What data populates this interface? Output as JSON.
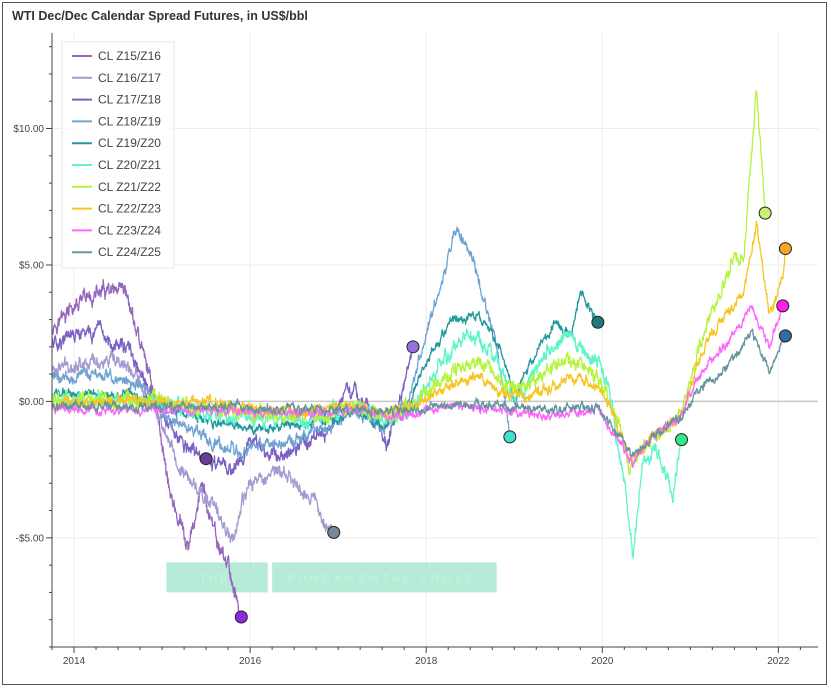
{
  "chart_data": {
    "type": "line",
    "title": "WTI Dec/Dec Calendar Spread Futures, in US$/bbl",
    "xlabel": "",
    "ylabel": "",
    "xlim": [
      2013.75,
      2022.45
    ],
    "ylim": [
      -9.0,
      13.5
    ],
    "x_ticks": [
      2014,
      2016,
      2018,
      2020,
      2022
    ],
    "x_tick_labels": [
      "2014",
      "2016",
      "2018",
      "2020",
      "2022"
    ],
    "y_ticks": [
      -5,
      0,
      5,
      10
    ],
    "y_tick_labels": [
      "-$5.00",
      "$0.00",
      "$5.00",
      "$10.00"
    ],
    "grid": true,
    "legend_position": "top-left",
    "zero_line": 0,
    "watermark": "THE FUNDAMENTAL ANGLE",
    "series": [
      {
        "name": "CL Z15/Z16",
        "color": "#9467bd",
        "volatility": 0.35,
        "points": [
          [
            2013.75,
            2.8
          ],
          [
            2014.0,
            3.4
          ],
          [
            2014.3,
            4.0
          ],
          [
            2014.6,
            3.8
          ],
          [
            2014.9,
            0.5
          ],
          [
            2015.1,
            -3.5
          ],
          [
            2015.3,
            -5.5
          ],
          [
            2015.45,
            -3.0
          ],
          [
            2015.6,
            -5.0
          ],
          [
            2015.75,
            -6.0
          ],
          [
            2015.9,
            -7.9
          ]
        ],
        "end_marker": {
          "x": 2015.9,
          "y": -7.9,
          "color": "#8a2be2"
        }
      },
      {
        "name": "CL Z16/Z17",
        "color": "#a79ad1",
        "volatility": 0.3,
        "points": [
          [
            2013.75,
            1.2
          ],
          [
            2014.2,
            1.5
          ],
          [
            2014.6,
            1.3
          ],
          [
            2014.9,
            0.0
          ],
          [
            2015.2,
            -2.5
          ],
          [
            2015.5,
            -3.5
          ],
          [
            2015.8,
            -5.0
          ],
          [
            2016.0,
            -3.0
          ],
          [
            2016.3,
            -2.5
          ],
          [
            2016.5,
            -3.0
          ],
          [
            2016.7,
            -3.5
          ],
          [
            2016.95,
            -4.8
          ]
        ],
        "end_marker": {
          "x": 2016.95,
          "y": -4.8,
          "color": "#778899"
        }
      },
      {
        "name": "CL Z17/Z18",
        "color": "#7b61c4",
        "volatility": 0.3,
        "points": [
          [
            2013.75,
            2.2
          ],
          [
            2014.2,
            2.5
          ],
          [
            2014.6,
            2.0
          ],
          [
            2014.9,
            0.0
          ],
          [
            2015.2,
            -1.5
          ],
          [
            2015.5,
            -2.2
          ],
          [
            2015.8,
            -2.5
          ],
          [
            2016.0,
            -1.5
          ],
          [
            2016.3,
            -2.0
          ],
          [
            2016.6,
            -1.5
          ],
          [
            2016.9,
            -1.0
          ],
          [
            2017.1,
            0.5
          ],
          [
            2017.3,
            0.0
          ],
          [
            2017.55,
            -1.5
          ],
          [
            2017.7,
            0.0
          ],
          [
            2017.85,
            2.0
          ]
        ],
        "end_marker": {
          "x": 2017.85,
          "y": 2.0,
          "color": "#9370db"
        }
      },
      {
        "name": "CL Z18/Z19",
        "color": "#6fa3d2",
        "volatility": 0.25,
        "points": [
          [
            2013.75,
            0.9
          ],
          [
            2014.3,
            1.0
          ],
          [
            2014.8,
            0.5
          ],
          [
            2015.0,
            -0.5
          ],
          [
            2015.3,
            -1.0
          ],
          [
            2015.6,
            -1.5
          ],
          [
            2015.9,
            -2.0
          ],
          [
            2016.2,
            -1.5
          ],
          [
            2016.5,
            -1.5
          ],
          [
            2016.9,
            -1.0
          ],
          [
            2017.2,
            -0.3
          ],
          [
            2017.5,
            -1.0
          ],
          [
            2017.8,
            0.0
          ],
          [
            2018.0,
            2.5
          ],
          [
            2018.2,
            4.5
          ],
          [
            2018.35,
            6.5
          ],
          [
            2018.6,
            4.5
          ],
          [
            2018.8,
            2.0
          ],
          [
            2018.95,
            -1.3
          ]
        ],
        "end_marker": {
          "x": 2018.95,
          "y": -1.3,
          "color": "#40e0d0"
        }
      },
      {
        "name": "CL Z19/Z20",
        "color": "#22999e",
        "volatility": 0.18,
        "points": [
          [
            2013.75,
            0.3
          ],
          [
            2014.5,
            0.3
          ],
          [
            2014.9,
            0.0
          ],
          [
            2015.2,
            -0.4
          ],
          [
            2015.6,
            -0.8
          ],
          [
            2016.0,
            -1.0
          ],
          [
            2016.5,
            -0.9
          ],
          [
            2016.9,
            -0.7
          ],
          [
            2017.2,
            -0.3
          ],
          [
            2017.5,
            -1.0
          ],
          [
            2017.8,
            -0.2
          ],
          [
            2018.0,
            1.5
          ],
          [
            2018.3,
            3.0
          ],
          [
            2018.6,
            3.2
          ],
          [
            2018.85,
            2.0
          ],
          [
            2019.0,
            0.0
          ],
          [
            2019.2,
            1.5
          ],
          [
            2019.45,
            2.8
          ],
          [
            2019.65,
            2.5
          ],
          [
            2019.75,
            4.0
          ],
          [
            2019.95,
            2.9
          ]
        ],
        "end_marker": {
          "x": 2019.95,
          "y": 2.9,
          "color": "#1e7a7a"
        }
      },
      {
        "name": "CL Z20/Z21",
        "color": "#5ef5c8",
        "volatility": 0.3,
        "points": [
          [
            2013.75,
            0.0
          ],
          [
            2014.9,
            0.0
          ],
          [
            2015.2,
            -0.2
          ],
          [
            2015.7,
            -0.6
          ],
          [
            2016.2,
            -0.7
          ],
          [
            2016.8,
            -0.6
          ],
          [
            2017.2,
            -0.2
          ],
          [
            2017.6,
            -0.8
          ],
          [
            2017.9,
            0.0
          ],
          [
            2018.2,
            1.5
          ],
          [
            2018.5,
            2.5
          ],
          [
            2018.8,
            1.5
          ],
          [
            2019.0,
            0.0
          ],
          [
            2019.3,
            1.5
          ],
          [
            2019.6,
            2.5
          ],
          [
            2019.95,
            1.5
          ],
          [
            2020.1,
            0.0
          ],
          [
            2020.25,
            -3.0
          ],
          [
            2020.35,
            -5.5
          ],
          [
            2020.45,
            -2.5
          ],
          [
            2020.6,
            -1.5
          ],
          [
            2020.8,
            -3.5
          ],
          [
            2020.9,
            -1.4
          ]
        ],
        "end_marker": {
          "x": 2020.9,
          "y": -1.4,
          "color": "#2ee88a"
        }
      },
      {
        "name": "CL Z21/Z22",
        "color": "#b2f53a",
        "volatility": 0.3,
        "points": [
          [
            2013.75,
            0.0
          ],
          [
            2014.9,
            0.0
          ],
          [
            2015.5,
            -0.3
          ],
          [
            2016.2,
            -0.5
          ],
          [
            2016.8,
            -0.5
          ],
          [
            2017.2,
            -0.2
          ],
          [
            2017.6,
            -0.6
          ],
          [
            2017.9,
            0.0
          ],
          [
            2018.3,
            1.0
          ],
          [
            2018.6,
            1.5
          ],
          [
            2018.9,
            0.5
          ],
          [
            2019.2,
            0.8
          ],
          [
            2019.6,
            1.5
          ],
          [
            2019.95,
            1.0
          ],
          [
            2020.2,
            -1.0
          ],
          [
            2020.3,
            -2.5
          ],
          [
            2020.5,
            -1.5
          ],
          [
            2020.9,
            -0.5
          ],
          [
            2021.1,
            2.0
          ],
          [
            2021.35,
            4.0
          ],
          [
            2021.5,
            5.5
          ],
          [
            2021.6,
            5.0
          ],
          [
            2021.75,
            11.5
          ],
          [
            2021.85,
            6.9
          ]
        ],
        "end_marker": {
          "x": 2021.85,
          "y": 6.9,
          "color": "#c8f07a"
        }
      },
      {
        "name": "CL Z22/Z23",
        "color": "#f7c520",
        "volatility": 0.22,
        "points": [
          [
            2013.75,
            0.0
          ],
          [
            2015.5,
            0.0
          ],
          [
            2015.8,
            -0.2
          ],
          [
            2016.5,
            -0.4
          ],
          [
            2017.2,
            -0.2
          ],
          [
            2017.6,
            -0.5
          ],
          [
            2017.9,
            0.0
          ],
          [
            2018.3,
            0.6
          ],
          [
            2018.6,
            1.0
          ],
          [
            2018.9,
            0.2
          ],
          [
            2019.3,
            0.3
          ],
          [
            2019.6,
            0.8
          ],
          [
            2019.95,
            0.6
          ],
          [
            2020.2,
            -1.0
          ],
          [
            2020.3,
            -2.2
          ],
          [
            2020.6,
            -1.3
          ],
          [
            2020.9,
            -0.5
          ],
          [
            2021.1,
            1.5
          ],
          [
            2021.35,
            3.0
          ],
          [
            2021.6,
            4.0
          ],
          [
            2021.75,
            6.5
          ],
          [
            2021.9,
            3.0
          ],
          [
            2022.05,
            4.5
          ],
          [
            2022.08,
            5.6
          ]
        ],
        "end_marker": {
          "x": 2022.08,
          "y": 5.6,
          "color": "#f5a623"
        }
      },
      {
        "name": "CL Z23/Z24",
        "color": "#ff66ff",
        "volatility": 0.18,
        "points": [
          [
            2013.75,
            -0.3
          ],
          [
            2015.5,
            -0.3
          ],
          [
            2016.0,
            -0.4
          ],
          [
            2016.8,
            -0.4
          ],
          [
            2017.3,
            -0.3
          ],
          [
            2017.7,
            -0.6
          ],
          [
            2018.0,
            -0.3
          ],
          [
            2018.5,
            -0.2
          ],
          [
            2019.0,
            -0.4
          ],
          [
            2019.5,
            -0.6
          ],
          [
            2019.95,
            -0.3
          ],
          [
            2020.2,
            -1.5
          ],
          [
            2020.35,
            -2.2
          ],
          [
            2020.6,
            -1.2
          ],
          [
            2020.9,
            -0.5
          ],
          [
            2021.1,
            1.0
          ],
          [
            2021.4,
            2.0
          ],
          [
            2021.7,
            3.5
          ],
          [
            2021.9,
            2.0
          ],
          [
            2022.05,
            3.5
          ]
        ],
        "end_marker": {
          "x": 2022.05,
          "y": 3.5,
          "color": "#ff1fe6"
        }
      },
      {
        "name": "CL Z24/Z25",
        "color": "#66959e",
        "volatility": 0.18,
        "points": [
          [
            2013.75,
            -0.2
          ],
          [
            2015.5,
            -0.2
          ],
          [
            2016.5,
            -0.3
          ],
          [
            2017.5,
            -0.4
          ],
          [
            2018.0,
            -0.2
          ],
          [
            2018.5,
            -0.1
          ],
          [
            2019.0,
            -0.2
          ],
          [
            2019.5,
            -0.3
          ],
          [
            2019.95,
            -0.2
          ],
          [
            2020.2,
            -1.3
          ],
          [
            2020.35,
            -2.0
          ],
          [
            2020.6,
            -1.2
          ],
          [
            2020.9,
            -0.6
          ],
          [
            2021.1,
            0.5
          ],
          [
            2021.4,
            1.2
          ],
          [
            2021.7,
            2.5
          ],
          [
            2021.9,
            1.0
          ],
          [
            2022.08,
            2.4
          ]
        ],
        "end_marker": {
          "x": 2022.08,
          "y": 2.4,
          "color": "#2f6f9a"
        }
      }
    ],
    "extra_markers": [
      {
        "x": 2015.5,
        "y": -2.1,
        "color": "#6a3d9a"
      }
    ]
  }
}
